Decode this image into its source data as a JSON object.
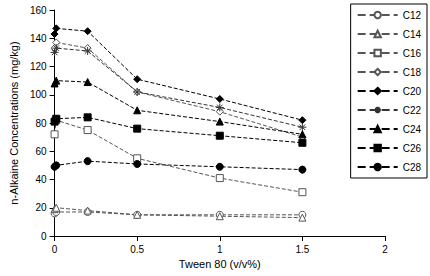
{
  "chart_data": {
    "type": "line",
    "x_label": "Tween 80 (v/v%)",
    "y_label": "n-Alkaine Concentrations (mg/kg)",
    "x": [
      0,
      0.01,
      0.2,
      0.5,
      1,
      1.5
    ],
    "xlim": [
      0,
      2
    ],
    "xticks": [
      0,
      0.5,
      1,
      1.5,
      2
    ],
    "ylim": [
      0,
      160
    ],
    "yticks": [
      0,
      20,
      40,
      60,
      80,
      100,
      120,
      140,
      160
    ],
    "grid": false,
    "legend": "upper right",
    "series": [
      {
        "name": "C12",
        "color": "#555555",
        "marker": "circle_open",
        "line_style": "dashed",
        "values": [
          16,
          17,
          17,
          15,
          15,
          15
        ]
      },
      {
        "name": "C14",
        "color": "#555555",
        "marker": "triangle_open",
        "line_style": "dashed",
        "values": [
          19,
          20,
          18,
          15,
          14,
          13
        ]
      },
      {
        "name": "C16",
        "color": "#555555",
        "marker": "square_open",
        "line_style": "dashed",
        "values": [
          72,
          82,
          75,
          55,
          41,
          31
        ]
      },
      {
        "name": "C18",
        "color": "#555555",
        "marker": "diamond_open",
        "line_style": "dashed",
        "values": [
          133,
          137,
          133,
          102,
          88,
          70
        ]
      },
      {
        "name": "C20",
        "color": "#000000",
        "marker": "diamond",
        "line_style": "dashed",
        "values": [
          143,
          147,
          145,
          111,
          97,
          82
        ]
      },
      {
        "name": "C22",
        "color": "#333333",
        "marker": "asterisk",
        "line_style": "dashed",
        "values": [
          130,
          133,
          131,
          102,
          91,
          77
        ]
      },
      {
        "name": "C24",
        "color": "#000000",
        "marker": "triangle",
        "line_style": "dashed",
        "values": [
          108,
          110,
          109,
          89,
          81,
          72
        ]
      },
      {
        "name": "C26",
        "color": "#000000",
        "marker": "square",
        "line_style": "dashed",
        "values": [
          81,
          83,
          84,
          76,
          71,
          66
        ]
      },
      {
        "name": "C28",
        "color": "#000000",
        "marker": "circle",
        "line_style": "dashed",
        "values": [
          49,
          50,
          53,
          51,
          49,
          47
        ]
      }
    ]
  }
}
